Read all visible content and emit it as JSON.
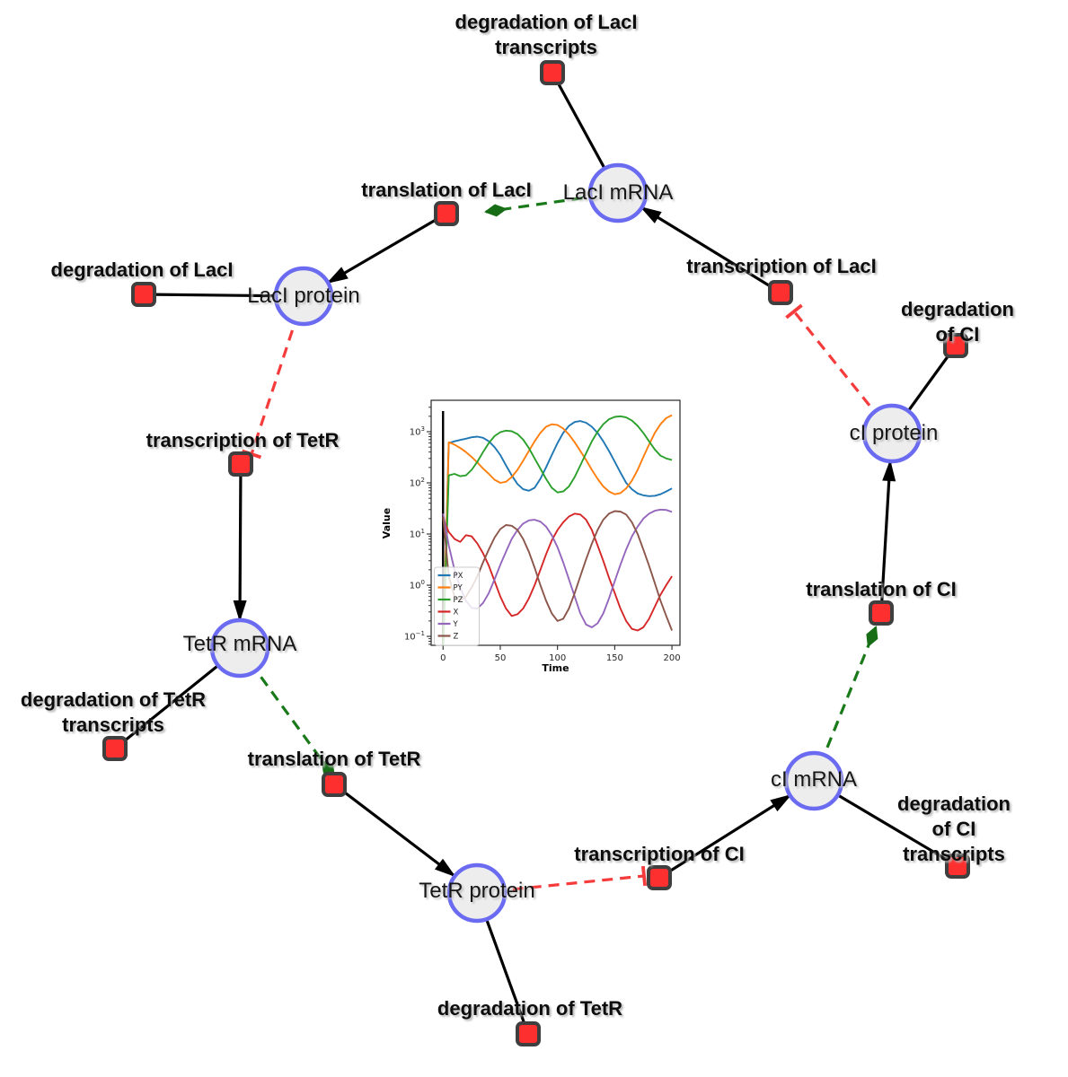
{
  "figure": {
    "background": "#ffffff"
  },
  "diagram": {
    "species": {
      "laci_mrna": "LacI mRNA",
      "laci_protein": "LacI protein",
      "tetr_mrna": "TetR mRNA",
      "tetr_protein": "TetR protein",
      "ci_mrna": "cI mRNA",
      "ci_protein": "cI protein"
    },
    "reactions": {
      "deg_laci_tr": "degradation of LacI\ntranscripts",
      "transl_laci": "translation of LacI",
      "transc_laci": "transcription of LacI",
      "deg_laci": "degradation of LacI",
      "deg_ci": "degradation of CI",
      "transc_tetr": "transcription of TetR",
      "transl_ci": "translation of CI",
      "deg_tetr_tr": "degradation of TetR\ntranscripts",
      "transl_tetr": "translation of TetR",
      "transc_ci": "transcription of CI",
      "deg_ci_tr": "degradation of CI\ntranscripts",
      "deg_tetr": "degradation of TetR"
    },
    "colors": {
      "species_fill": "#ededed",
      "species_border": "#6b6bf2",
      "reaction_fill": "#fd2f2f",
      "reaction_border": "#3f3f3f",
      "flow_edge": "#000000",
      "catalysis_edge": "#1a7a1a",
      "inhibition_edge": "#f53b3b"
    }
  },
  "chart_data": {
    "type": "line",
    "title": "",
    "xlabel": "Time",
    "ylabel": "Value",
    "yscale": "log",
    "xlim": [
      -10.4,
      207
    ],
    "ylim_log": [
      -1.175,
      3.614
    ],
    "x_ticks": [
      0,
      50,
      100,
      150,
      200
    ],
    "y_tick_exponents": [
      -1,
      0,
      1,
      2,
      3
    ],
    "grid": false,
    "legend_position": "lower left",
    "vline_x": 0,
    "x": [
      0,
      5,
      10,
      15,
      20,
      25,
      30,
      35,
      40,
      45,
      50,
      55,
      60,
      65,
      70,
      75,
      80,
      85,
      90,
      95,
      100,
      105,
      110,
      115,
      120,
      125,
      130,
      135,
      140,
      145,
      150,
      155,
      160,
      165,
      170,
      175,
      180,
      185,
      190,
      195,
      200
    ],
    "series": [
      {
        "name": "PX",
        "color": "#1f77b4",
        "values": [
          0.05,
          600,
          650,
          690,
          730,
          780,
          800,
          760,
          650,
          500,
          350,
          220,
          140,
          95,
          75,
          70,
          80,
          120,
          200,
          350,
          600,
          950,
          1300,
          1550,
          1620,
          1500,
          1250,
          950,
          650,
          420,
          260,
          160,
          100,
          75,
          62,
          57,
          55,
          56,
          60,
          68,
          78
        ]
      },
      {
        "name": "PY",
        "color": "#ff7f0e",
        "values": [
          0.05,
          620,
          560,
          480,
          400,
          320,
          250,
          190,
          150,
          115,
          100,
          105,
          130,
          180,
          270,
          420,
          650,
          950,
          1250,
          1400,
          1350,
          1150,
          880,
          620,
          420,
          280,
          180,
          120,
          85,
          68,
          60,
          63,
          78,
          110,
          180,
          320,
          560,
          950,
          1400,
          1850,
          2100
        ]
      },
      {
        "name": "PZ",
        "color": "#2ca02c",
        "values": [
          0.05,
          140,
          150,
          135,
          140,
          180,
          260,
          400,
          600,
          820,
          980,
          1050,
          1020,
          900,
          700,
          480,
          300,
          190,
          120,
          80,
          65,
          68,
          85,
          130,
          220,
          380,
          650,
          1000,
          1400,
          1750,
          1950,
          2000,
          1900,
          1650,
          1300,
          950,
          650,
          450,
          340,
          300,
          280
        ]
      },
      {
        "name": "X",
        "color": "#d62728",
        "values": [
          20,
          11,
          8,
          7,
          9.5,
          9,
          6.5,
          4.2,
          2.4,
          1.2,
          0.6,
          0.35,
          0.25,
          0.27,
          0.35,
          0.55,
          1.0,
          2.0,
          4.0,
          7.5,
          12,
          17,
          22,
          25,
          24,
          19,
          12,
          6,
          3,
          1.4,
          0.7,
          0.35,
          0.2,
          0.14,
          0.13,
          0.15,
          0.22,
          0.38,
          0.65,
          1.0,
          1.5
        ]
      },
      {
        "name": "Y",
        "color": "#9467bd",
        "values": [
          25,
          6,
          2,
          0.9,
          0.5,
          0.36,
          0.35,
          0.45,
          0.7,
          1.3,
          2.5,
          4.5,
          8,
          12,
          16,
          18.5,
          19,
          17.5,
          14,
          9.5,
          5.5,
          2.8,
          1.3,
          0.6,
          0.28,
          0.17,
          0.15,
          0.18,
          0.28,
          0.55,
          1.2,
          2.5,
          5,
          9,
          14,
          20,
          25,
          28.5,
          30,
          29.5,
          27
        ]
      },
      {
        "name": "Z",
        "color": "#8c564b",
        "values": [
          22,
          1.5,
          0.6,
          0.5,
          0.6,
          0.9,
          1.5,
          2.8,
          5,
          8.5,
          12.5,
          15,
          14.5,
          12,
          8,
          4.5,
          2.2,
          1.0,
          0.5,
          0.28,
          0.2,
          0.22,
          0.35,
          0.7,
          1.5,
          3.2,
          6.5,
          12,
          19,
          25,
          28,
          27.5,
          24,
          17,
          10,
          5,
          2.4,
          1.1,
          0.5,
          0.25,
          0.13
        ]
      }
    ]
  }
}
